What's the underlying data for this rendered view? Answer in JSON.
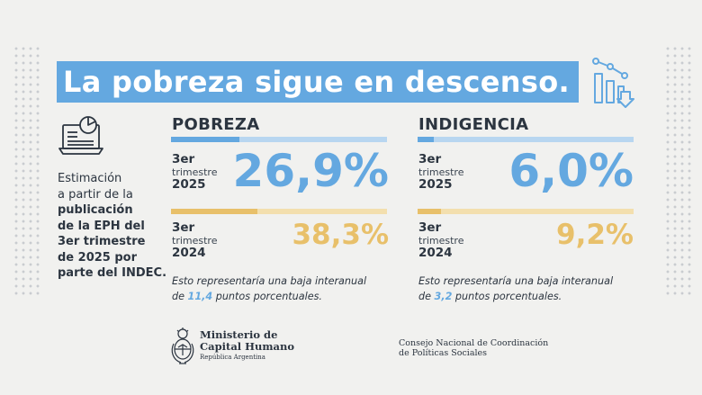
{
  "title": "La pobreza sigue en descenso.",
  "estimacion": {
    "line1": "Estimación",
    "line2": "a partir de la",
    "line3": "publicación",
    "line4": "de la EPH del",
    "line5": "3er trimestre",
    "line6": "de 2025 por",
    "line7": "parte del INDEC."
  },
  "pobreza": {
    "title": "POBREZA",
    "current": {
      "n": "3er",
      "t": "trimestre",
      "y": "2025",
      "value": "26,9%"
    },
    "previous": {
      "n": "3er",
      "t": "trimestre",
      "y": "2024",
      "value": "38,3%"
    },
    "note_line1": "Esto representaría una baja interanual",
    "note_pre": "de ",
    "note_value": "11,4",
    "note_post": " puntos porcentuales."
  },
  "indigencia": {
    "title": "INDIGENCIA",
    "current": {
      "n": "3er",
      "t": "trimestre",
      "y": "2025",
      "value": "6,0%"
    },
    "previous": {
      "n": "3er",
      "t": "trimestre",
      "y": "2024",
      "value": "9,2%"
    },
    "note_line1": "Esto representaría una baja interanual",
    "note_pre": "de ",
    "note_value": "3,2",
    "note_post": " puntos porcentuales."
  },
  "footer": {
    "ministerio_l1": "Ministerio de",
    "ministerio_l2": "Capital Humano",
    "ministerio_l3": "República Argentina",
    "consejo_l1": "Consejo Nacional de Coordinación",
    "consejo_l2": "de Políticas Sociales"
  },
  "colors": {
    "accent_blue": "#64a8e0",
    "accent_gold": "#e8c06a",
    "text": "#2c3540"
  },
  "icons": [
    "chart-down-icon",
    "laptop-pie-chart-icon",
    "coat-of-arms-icon"
  ]
}
